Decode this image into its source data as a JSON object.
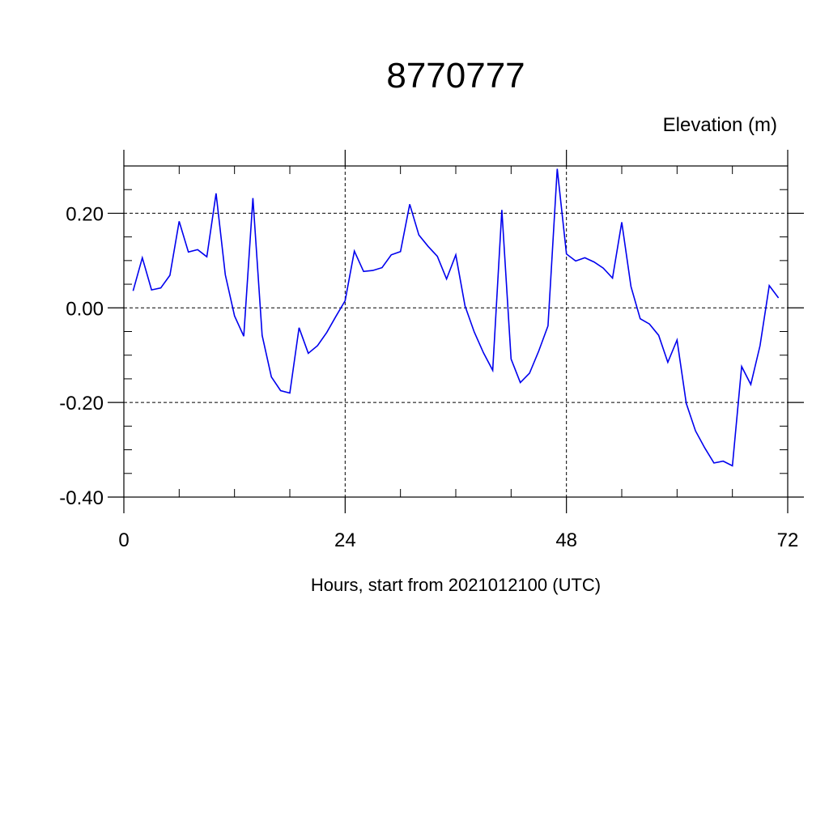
{
  "chart_data": {
    "type": "line",
    "title": "8770777",
    "ylabel": "Elevation (m)",
    "xlabel": "Hours, start from 2021012100 (UTC)",
    "xlim": [
      0,
      72
    ],
    "ylim": [
      -0.4,
      0.3
    ],
    "x_ticks": [
      0,
      24,
      48,
      72
    ],
    "x_tick_labels": [
      "0",
      "24",
      "48",
      "72"
    ],
    "y_ticks": [
      -0.4,
      -0.2,
      0.0,
      0.2
    ],
    "y_tick_labels": [
      "-0.40",
      "-0.20",
      "0.00",
      "0.20"
    ],
    "grid": true,
    "series": [
      {
        "color": "#0000ee",
        "x": [
          1,
          2,
          3,
          4,
          5,
          6,
          7,
          8,
          9,
          10,
          11,
          12,
          13,
          14,
          15,
          16,
          17,
          18,
          19,
          20,
          21,
          22,
          23,
          24,
          25,
          26,
          27,
          28,
          29,
          30,
          31,
          32,
          33,
          34,
          35,
          36,
          37,
          38,
          39,
          40,
          41,
          42,
          43,
          44,
          45,
          46,
          47,
          48,
          49,
          50,
          51,
          52,
          53,
          54,
          55,
          56,
          57,
          58,
          59,
          60,
          61,
          62,
          63,
          64,
          65,
          66,
          67,
          68,
          69,
          70,
          71
        ],
        "values": [
          0.036,
          0.106,
          0.038,
          0.042,
          0.069,
          0.183,
          0.118,
          0.123,
          0.108,
          0.242,
          0.07,
          -0.017,
          -0.06,
          0.232,
          -0.058,
          -0.146,
          -0.175,
          -0.18,
          -0.042,
          -0.096,
          -0.08,
          -0.052,
          -0.018,
          0.015,
          0.12,
          0.077,
          0.079,
          0.085,
          0.112,
          0.119,
          0.219,
          0.154,
          0.13,
          0.109,
          0.061,
          0.112,
          0.004,
          -0.051,
          -0.095,
          -0.132,
          0.207,
          -0.108,
          -0.158,
          -0.138,
          -0.091,
          -0.038,
          0.294,
          0.114,
          0.099,
          0.106,
          0.097,
          0.084,
          0.063,
          0.181,
          0.045,
          -0.023,
          -0.034,
          -0.058,
          -0.115,
          -0.068,
          -0.202,
          -0.26,
          -0.296,
          -0.328,
          -0.324,
          -0.334,
          -0.124,
          -0.162,
          -0.08,
          0.047,
          0.021
        ]
      }
    ]
  }
}
